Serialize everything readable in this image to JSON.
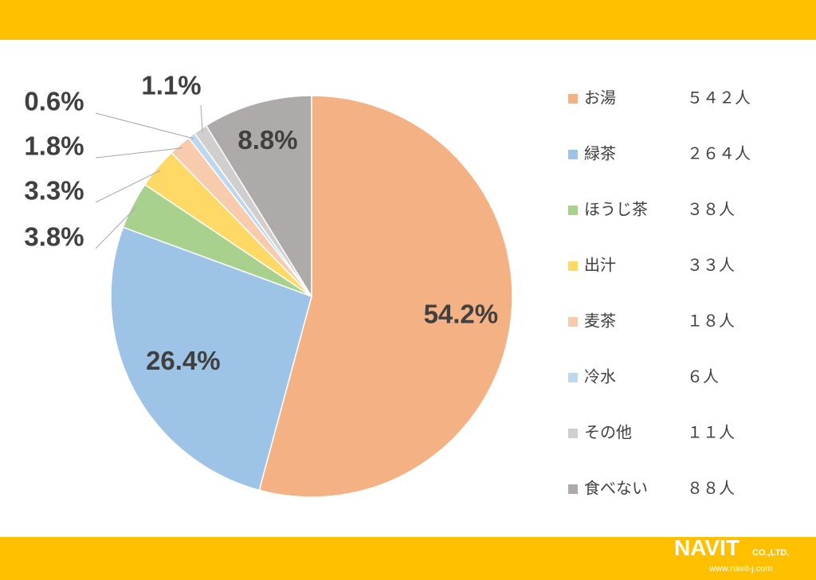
{
  "chart_data": {
    "type": "pie",
    "categories": [
      "お湯",
      "緑茶",
      "ほうじ茶",
      "出汁",
      "麦茶",
      "冷水",
      "その他",
      "食べない"
    ],
    "values": [
      54.2,
      26.4,
      3.8,
      3.3,
      1.8,
      0.6,
      1.1,
      8.8
    ],
    "value_labels": [
      "54.2%",
      "26.4%",
      "3.8%",
      "3.3%",
      "1.8%",
      "0.6%",
      "1.1%",
      "8.8%"
    ],
    "legend_counts": [
      "５４２人",
      "２６４人",
      "３８人",
      "３３人",
      "１８人",
      "６人",
      "１１人",
      "８８人"
    ],
    "colors": [
      "#f4b183",
      "#9dc3e6",
      "#a9d18e",
      "#ffd966",
      "#f8cbad",
      "#bdd7ee",
      "#d0cece",
      "#aeaaaa"
    ],
    "legend": "right"
  },
  "footer": {
    "logo": "NAVIT",
    "logo_suffix": "CO.,LTD.",
    "url": "www.navit-j.com"
  }
}
